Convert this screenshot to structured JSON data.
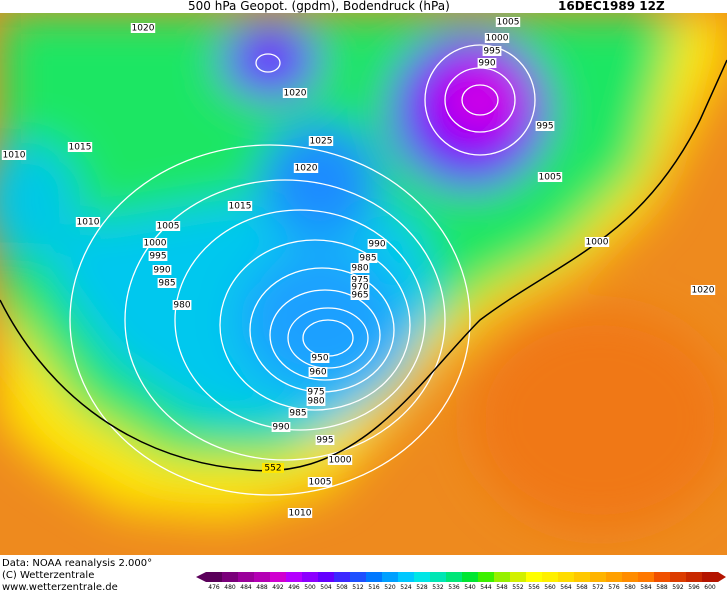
{
  "header": {
    "title": "500 hPa Geopot. (gpdm), Bodendruck (hPa)",
    "date": "16DEC1989 12Z"
  },
  "map": {
    "isobar_labels": [
      1020,
      1020,
      1025,
      1020,
      1015,
      1010,
      1015,
      1010,
      1005,
      1000,
      995,
      990,
      985,
      980,
      1005,
      1000,
      995,
      990,
      995,
      1005,
      1000,
      990,
      985,
      980,
      975,
      970,
      965,
      950,
      960,
      975,
      980,
      985,
      990,
      995,
      1000,
      1005,
      1010,
      1020
    ],
    "contour_label": "552"
  },
  "footer": {
    "source": "Data: NOAA reanalysis 2.000°",
    "copyright": "(C) Wetterzentrale",
    "website": "www.wetterzentrale.de"
  },
  "legend": {
    "ticks": [
      476,
      480,
      484,
      488,
      492,
      496,
      500,
      504,
      508,
      512,
      516,
      520,
      524,
      528,
      532,
      536,
      540,
      544,
      548,
      552,
      556,
      560,
      564,
      568,
      572,
      576,
      580,
      584,
      588,
      592,
      596,
      600
    ],
    "colors": [
      "#5a005a",
      "#7a007a",
      "#9a009a",
      "#b400b4",
      "#d000d0",
      "#b400ff",
      "#8c00ff",
      "#6400ff",
      "#3c28ff",
      "#1e50ff",
      "#0078ff",
      "#00a0ff",
      "#00c8ff",
      "#00e6e6",
      "#00e6b4",
      "#00e678",
      "#00e632",
      "#3cf000",
      "#96f000",
      "#d2f000",
      "#ffff00",
      "#fff000",
      "#ffdc00",
      "#ffc800",
      "#ffb400",
      "#ffa000",
      "#ff8c00",
      "#ff7800",
      "#f05000",
      "#dc3c00",
      "#c82800",
      "#b41400"
    ]
  }
}
